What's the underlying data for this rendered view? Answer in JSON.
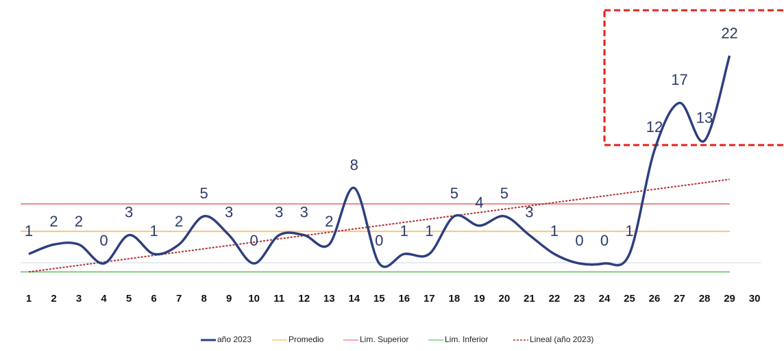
{
  "chart_data": {
    "type": "line",
    "categories": [
      "1",
      "2",
      "3",
      "4",
      "5",
      "6",
      "7",
      "8",
      "9",
      "10",
      "11",
      "12",
      "13",
      "14",
      "15",
      "16",
      "17",
      "18",
      "19",
      "20",
      "21",
      "22",
      "23",
      "24",
      "25",
      "26",
      "27",
      "28",
      "29",
      "30"
    ],
    "series": [
      {
        "name": "año 2023",
        "color": "#2e3f7f",
        "values": [
          1,
          2,
          2,
          0,
          3,
          1,
          2,
          5,
          3,
          0,
          3,
          3,
          2,
          8,
          0,
          1,
          1,
          5,
          4,
          5,
          3,
          1,
          0,
          0,
          1,
          12,
          17,
          13,
          22,
          null
        ]
      }
    ],
    "reference_lines": [
      {
        "name": "Promedio",
        "color": "#f7c67c",
        "value": 3.4
      },
      {
        "name": "Lim. Superior",
        "color": "#f08a8a",
        "value": 6.3
      },
      {
        "name": "Lim. Inferior",
        "color": "#7fcf7f",
        "value": -0.9
      }
    ],
    "trendline": {
      "name": "Lineal (año 2023)",
      "color": "#b03030",
      "values": [
        -0.9,
        8.9
      ]
    },
    "ylim": [
      -2,
      24
    ]
  }
}
